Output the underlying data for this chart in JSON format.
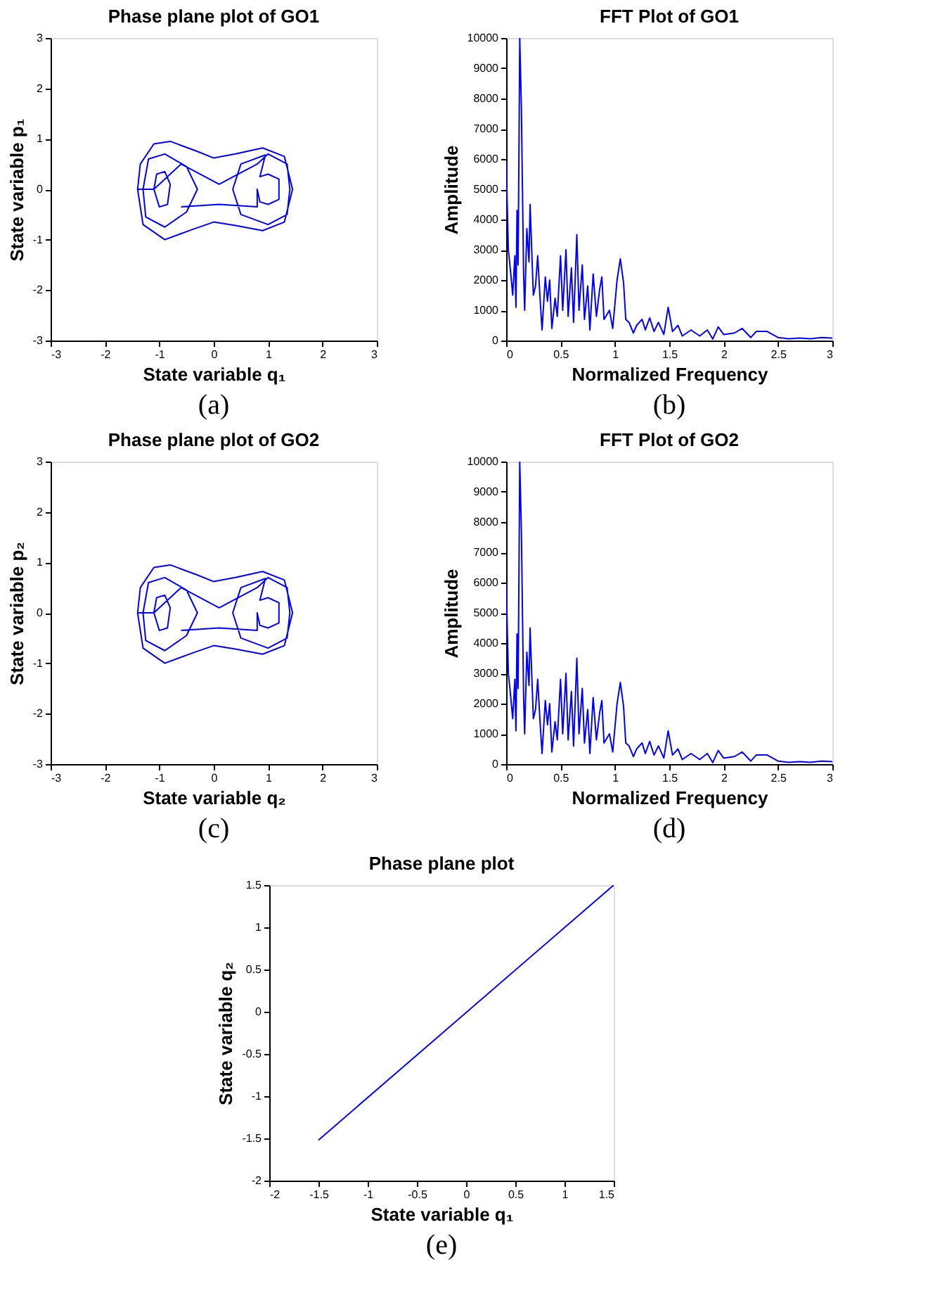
{
  "chart_data": [
    {
      "type": "line",
      "title": "Phase plane plot of GO1",
      "xlabel": "State variable q₁",
      "ylabel": "State variable p₁",
      "xlim": [
        -3,
        3
      ],
      "ylim": [
        -3,
        3
      ],
      "xticks": [
        -3,
        -2,
        -1,
        0,
        1,
        2,
        3
      ],
      "yticks": [
        -3,
        -2,
        -1,
        0,
        1,
        2,
        3
      ],
      "annotations": [
        "(a)"
      ],
      "series": [
        {
          "color": "#0000ff",
          "x": [
            -1.4,
            -1.35,
            -1.1,
            -0.8,
            -0.3,
            0,
            0.4,
            0.9,
            1.3,
            1.45,
            1.3,
            0.9,
            0.4,
            0,
            -0.4,
            -0.9,
            -1.3,
            -1.4,
            -1.3,
            -1.2,
            -0.9,
            -0.5,
            -0.3,
            -0.5,
            -0.9,
            -1.25,
            -1.3,
            -1.1,
            -1.05,
            -0.9,
            -0.8,
            -0.85,
            -1.0,
            -1.1,
            -0.6,
            0.1,
            0.8,
            1.0,
            1.35,
            1.4,
            1.35,
            1.0,
            0.5,
            0.35,
            0.5,
            0.95,
            0.85,
            1.0,
            1.2,
            1.2,
            1.0,
            0.85,
            0.8,
            0.8,
            0.1,
            -0.6
          ],
          "values": [
            0,
            0.5,
            0.9,
            0.95,
            0.75,
            0.62,
            0.7,
            0.82,
            0.65,
            0,
            -0.65,
            -0.82,
            -0.72,
            -0.65,
            -0.8,
            -1.0,
            -0.7,
            0,
            0,
            0.6,
            0.7,
            0.45,
            0,
            -0.45,
            -0.75,
            -0.55,
            0,
            0,
            0.3,
            0.35,
            0.1,
            -0.3,
            -0.35,
            0,
            0.5,
            0.1,
            0.5,
            0.7,
            0.5,
            0,
            -0.5,
            -0.7,
            -0.5,
            0,
            0.5,
            0.68,
            0.25,
            0.3,
            0.2,
            -0.2,
            -0.3,
            -0.25,
            0,
            -0.35,
            -0.3,
            -0.35
          ]
        }
      ]
    },
    {
      "type": "line",
      "title": "FFT Plot of GO1",
      "xlabel": "Normalized Frequency",
      "ylabel": "Amplitude",
      "xlim": [
        0,
        3
      ],
      "ylim": [
        0,
        10000
      ],
      "xticks": [
        0,
        0.5,
        1,
        1.5,
        2,
        2.5,
        3
      ],
      "yticks": [
        0,
        1000,
        2000,
        3000,
        4000,
        5000,
        6000,
        7000,
        8000,
        9000,
        10000
      ],
      "annotations": [
        "(b)"
      ],
      "series": [
        {
          "color": "#0000ff",
          "x": [
            0,
            0.02,
            0.04,
            0.06,
            0.08,
            0.09,
            0.1,
            0.11,
            0.125,
            0.14,
            0.16,
            0.17,
            0.19,
            0.21,
            0.22,
            0.25,
            0.27,
            0.29,
            0.31,
            0.33,
            0.36,
            0.38,
            0.4,
            0.42,
            0.45,
            0.47,
            0.5,
            0.52,
            0.55,
            0.57,
            0.6,
            0.62,
            0.65,
            0.67,
            0.7,
            0.72,
            0.75,
            0.77,
            0.8,
            0.83,
            0.86,
            0.88,
            0.9,
            0.95,
            0.98,
            1.02,
            1.05,
            1.08,
            1.1,
            1.13,
            1.17,
            1.2,
            1.25,
            1.28,
            1.32,
            1.36,
            1.4,
            1.45,
            1.49,
            1.53,
            1.58,
            1.62,
            1.7,
            1.78,
            1.85,
            1.9,
            1.95,
            2.0,
            2.1,
            2.17,
            2.25,
            2.3,
            2.4,
            2.5,
            2.6,
            2.7,
            2.8,
            2.9,
            3.0
          ],
          "values": [
            5900,
            3000,
            2300,
            1500,
            2800,
            1100,
            4300,
            2500,
            10000,
            7700,
            2300,
            1000,
            3700,
            2600,
            4500,
            1500,
            1800,
            2800,
            1500,
            350,
            2100,
            1300,
            2000,
            400,
            1400,
            800,
            2800,
            1000,
            3000,
            800,
            2400,
            600,
            3500,
            1000,
            2500,
            700,
            1800,
            350,
            2200,
            800,
            1700,
            2100,
            700,
            1000,
            400,
            2000,
            2700,
            1900,
            700,
            600,
            250,
            500,
            700,
            350,
            750,
            300,
            600,
            200,
            1100,
            300,
            500,
            150,
            350,
            150,
            350,
            50,
            450,
            200,
            250,
            400,
            100,
            300,
            300,
            100,
            60,
            80,
            60,
            100,
            80
          ]
        }
      ]
    },
    {
      "type": "line",
      "title": "Phase plane plot of GO2",
      "xlabel": "State variable q₂",
      "ylabel": "State variable p₂",
      "xlim": [
        -3,
        3
      ],
      "ylim": [
        -3,
        3
      ],
      "xticks": [
        -3,
        -2,
        -1,
        0,
        1,
        2,
        3
      ],
      "yticks": [
        -3,
        -2,
        -1,
        0,
        1,
        2,
        3
      ],
      "annotations": [
        "(c)"
      ],
      "series": [
        {
          "color": "#0000ff",
          "x": [
            -1.4,
            -1.35,
            -1.1,
            -0.8,
            -0.3,
            0,
            0.4,
            0.9,
            1.3,
            1.45,
            1.3,
            0.9,
            0.4,
            0,
            -0.4,
            -0.9,
            -1.3,
            -1.4,
            -1.3,
            -1.2,
            -0.9,
            -0.5,
            -0.3,
            -0.5,
            -0.9,
            -1.25,
            -1.3,
            -1.1,
            -1.05,
            -0.9,
            -0.8,
            -0.85,
            -1.0,
            -1.1,
            -0.6,
            0.1,
            0.8,
            1.0,
            1.35,
            1.4,
            1.35,
            1.0,
            0.5,
            0.35,
            0.5,
            0.95,
            0.85,
            1.0,
            1.2,
            1.2,
            1.0,
            0.85,
            0.8,
            0.8,
            0.1,
            -0.6
          ],
          "values": [
            0,
            0.5,
            0.9,
            0.95,
            0.75,
            0.62,
            0.7,
            0.82,
            0.65,
            0,
            -0.65,
            -0.82,
            -0.72,
            -0.65,
            -0.8,
            -1.0,
            -0.7,
            0,
            0,
            0.6,
            0.7,
            0.45,
            0,
            -0.45,
            -0.75,
            -0.55,
            0,
            0,
            0.3,
            0.35,
            0.1,
            -0.3,
            -0.35,
            0,
            0.5,
            0.1,
            0.5,
            0.7,
            0.5,
            0,
            -0.5,
            -0.7,
            -0.5,
            0,
            0.5,
            0.68,
            0.25,
            0.3,
            0.2,
            -0.2,
            -0.3,
            -0.25,
            0,
            -0.35,
            -0.3,
            -0.35
          ]
        }
      ]
    },
    {
      "type": "line",
      "title": "FFT Plot of GO2",
      "xlabel": "Normalized Frequency",
      "ylabel": "Amplitude",
      "xlim": [
        0,
        3
      ],
      "ylim": [
        0,
        10000
      ],
      "xticks": [
        0,
        0.5,
        1,
        1.5,
        2,
        2.5,
        3
      ],
      "yticks": [
        0,
        1000,
        2000,
        3000,
        4000,
        5000,
        6000,
        7000,
        8000,
        9000,
        10000
      ],
      "annotations": [
        "(d)"
      ],
      "series": [
        {
          "color": "#0000ff",
          "x": [
            0,
            0.02,
            0.04,
            0.06,
            0.08,
            0.09,
            0.1,
            0.11,
            0.125,
            0.14,
            0.16,
            0.17,
            0.19,
            0.21,
            0.22,
            0.25,
            0.27,
            0.29,
            0.31,
            0.33,
            0.36,
            0.38,
            0.4,
            0.42,
            0.45,
            0.47,
            0.5,
            0.52,
            0.55,
            0.57,
            0.6,
            0.62,
            0.65,
            0.67,
            0.7,
            0.72,
            0.75,
            0.77,
            0.8,
            0.83,
            0.86,
            0.88,
            0.9,
            0.95,
            0.98,
            1.02,
            1.05,
            1.08,
            1.1,
            1.13,
            1.17,
            1.2,
            1.25,
            1.28,
            1.32,
            1.36,
            1.4,
            1.45,
            1.49,
            1.53,
            1.58,
            1.62,
            1.7,
            1.78,
            1.85,
            1.9,
            1.95,
            2.0,
            2.1,
            2.17,
            2.25,
            2.3,
            2.4,
            2.5,
            2.6,
            2.7,
            2.8,
            2.9,
            3.0
          ],
          "values": [
            6000,
            3000,
            2300,
            1500,
            2800,
            1100,
            4300,
            2500,
            10000,
            7700,
            2300,
            1000,
            3700,
            2600,
            4500,
            1500,
            1800,
            2800,
            1500,
            350,
            2100,
            1300,
            2000,
            400,
            1400,
            800,
            2800,
            1000,
            3000,
            800,
            2400,
            600,
            3500,
            1000,
            2500,
            700,
            1800,
            350,
            2200,
            800,
            1700,
            2100,
            700,
            1000,
            400,
            2000,
            2700,
            1900,
            700,
            600,
            250,
            500,
            700,
            350,
            750,
            300,
            600,
            200,
            1100,
            300,
            500,
            150,
            350,
            150,
            350,
            50,
            450,
            200,
            250,
            400,
            100,
            300,
            300,
            100,
            60,
            80,
            60,
            100,
            80
          ]
        }
      ]
    },
    {
      "type": "line",
      "title": "Phase plane plot",
      "xlabel": "State variable q₁",
      "ylabel": "State variable q₂",
      "xlim": [
        -2,
        1.5
      ],
      "ylim": [
        -2,
        1.5
      ],
      "xticks": [
        -2,
        -1.5,
        -1,
        -0.5,
        0,
        0.5,
        1,
        1.5
      ],
      "yticks": [
        -2,
        -1.5,
        -1,
        -0.5,
        0,
        0.5,
        1,
        1.5
      ],
      "annotations": [
        "(e)"
      ],
      "series": [
        {
          "color": "#0000ff",
          "x": [
            -1.5,
            1.5
          ],
          "values": [
            -1.52,
            1.5
          ]
        }
      ]
    }
  ]
}
